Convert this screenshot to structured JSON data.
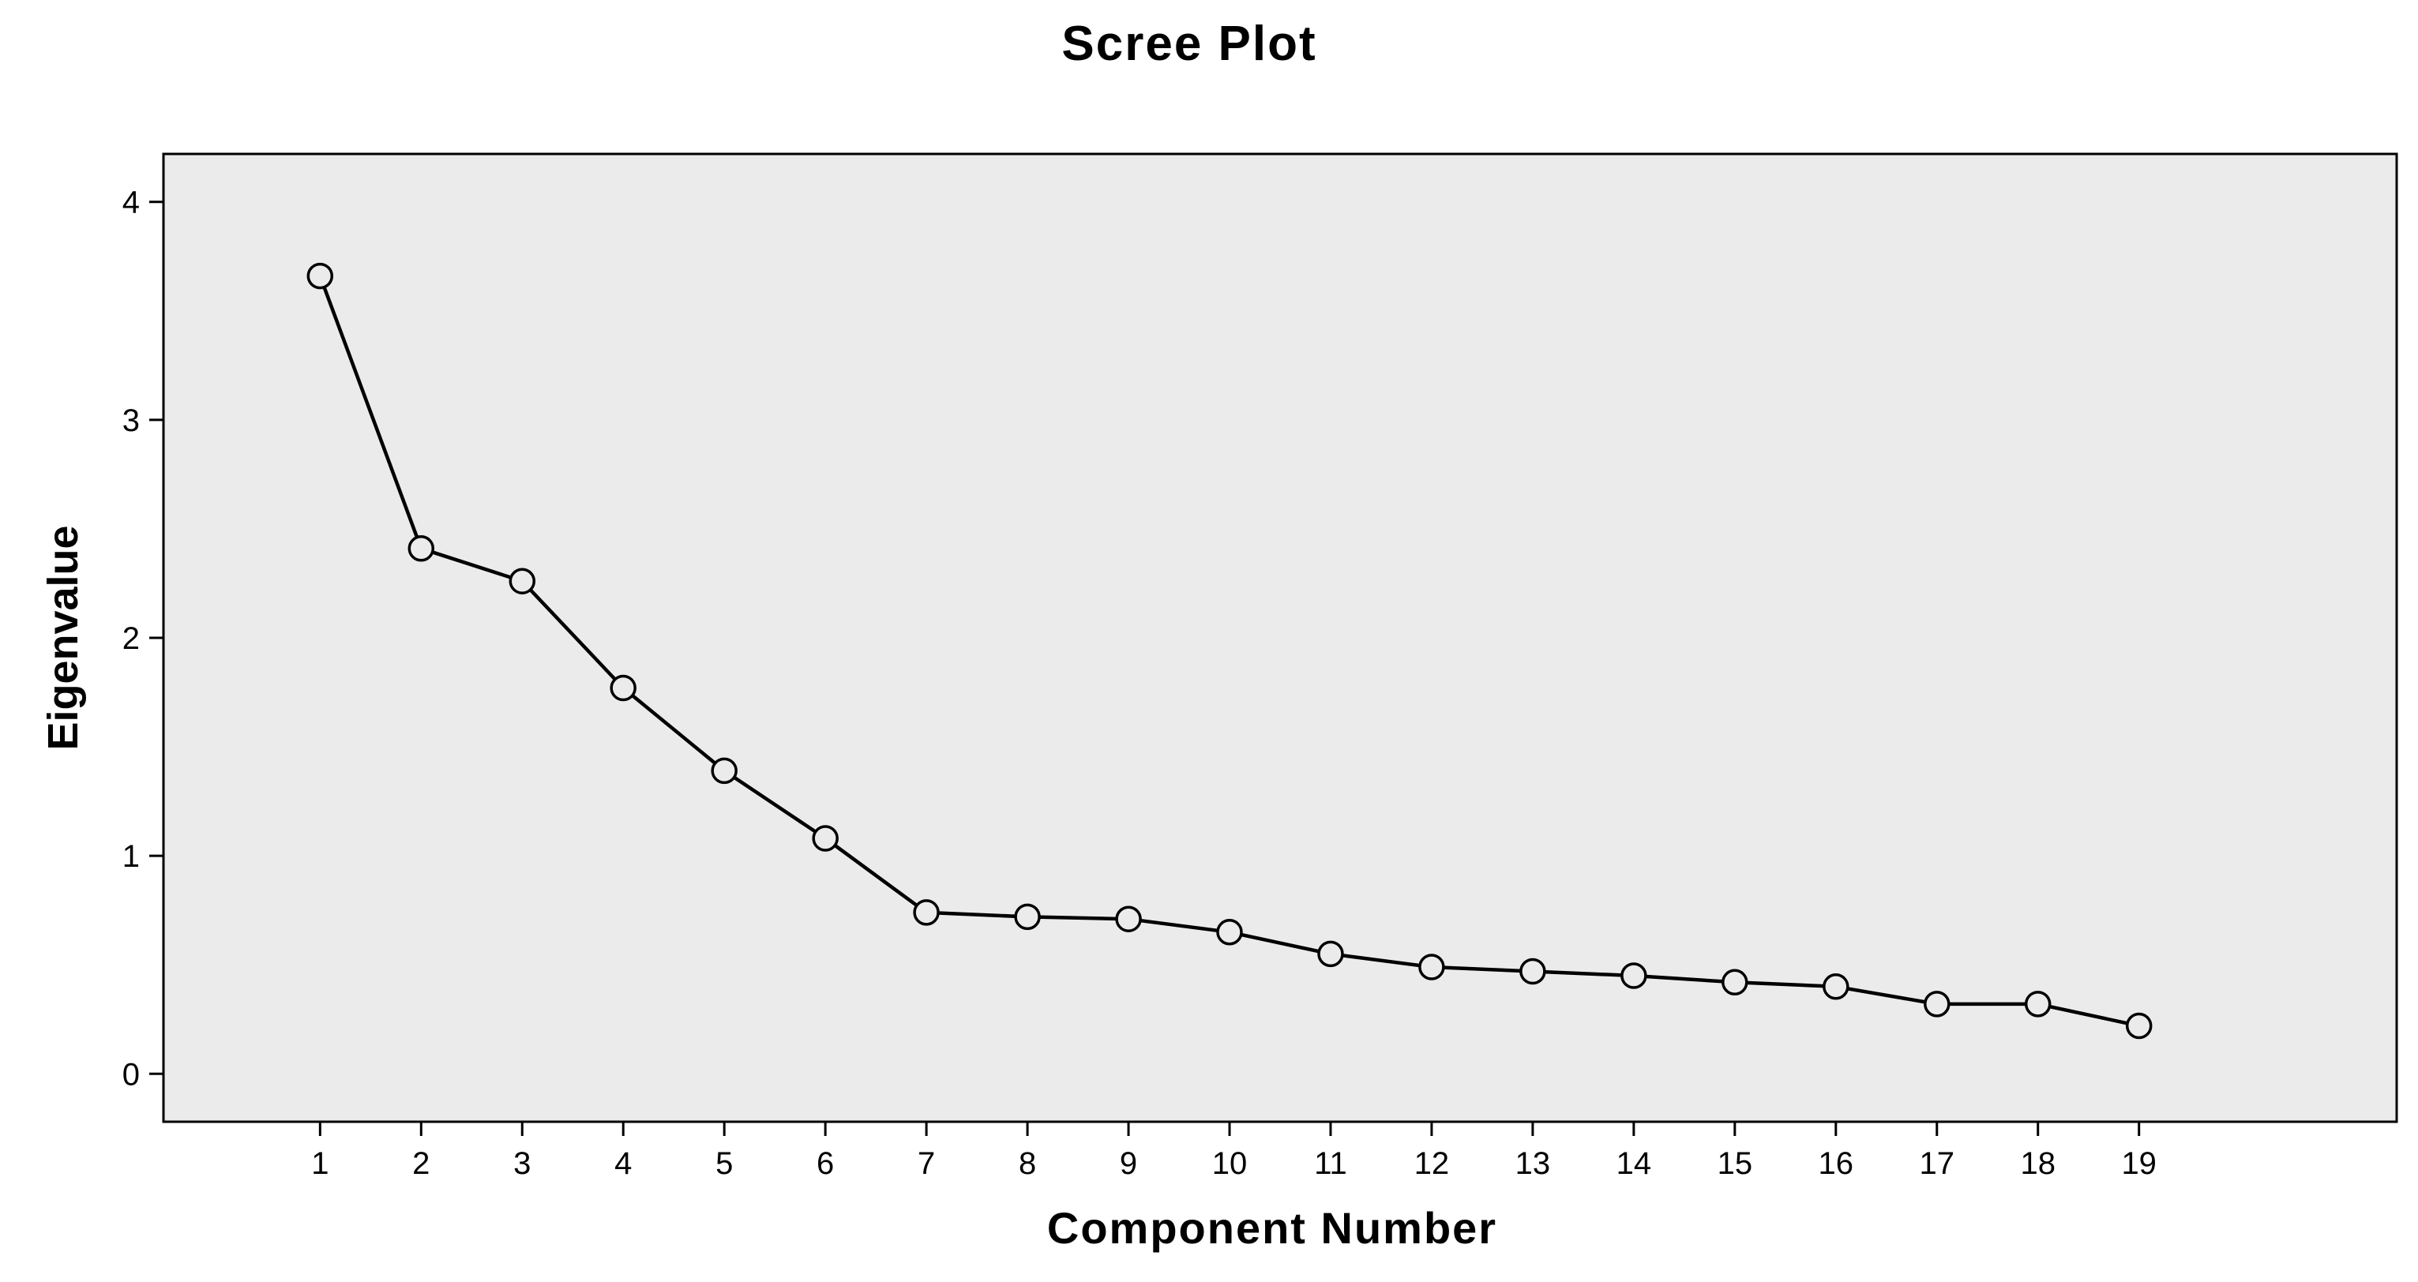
{
  "chart_data": {
    "type": "line",
    "title": "Scree Plot",
    "xlabel": "Component Number",
    "ylabel": "Eigenvalue",
    "x": [
      1,
      2,
      3,
      4,
      5,
      6,
      7,
      8,
      9,
      10,
      11,
      12,
      13,
      14,
      15,
      16,
      17,
      18,
      19
    ],
    "series": [
      {
        "values": [
          3.66,
          2.41,
          2.26,
          1.77,
          1.39,
          1.08,
          0.74,
          0.72,
          0.71,
          0.65,
          0.55,
          0.49,
          0.47,
          0.45,
          0.42,
          0.4,
          0.32,
          0.32,
          0.22
        ]
      }
    ],
    "xticks": [
      "1",
      "2",
      "3",
      "4",
      "5",
      "6",
      "7",
      "8",
      "9",
      "10",
      "11",
      "12",
      "13",
      "14",
      "15",
      "16",
      "17",
      "18",
      "19"
    ],
    "yticks": [
      "0",
      "1",
      "2",
      "3",
      "4"
    ],
    "ylim": [
      -0.22,
      4.22
    ],
    "xlim": [
      -0.55,
      21.55
    ],
    "grid": false,
    "legend": "none",
    "colors": {
      "plot_background": "#ebebeb",
      "line": "#000000",
      "marker_fill": "#ebebeb",
      "frame": "#000000"
    }
  }
}
